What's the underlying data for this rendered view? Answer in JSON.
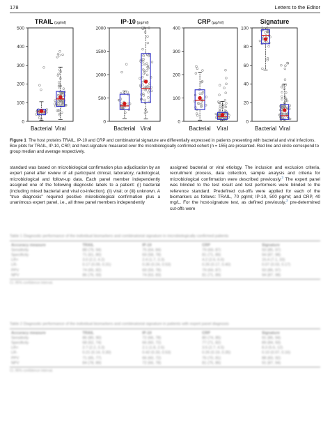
{
  "header": {
    "page_number": "178",
    "journal_section": "Letters to the Editor"
  },
  "figure": {
    "panels": [
      {
        "id": "trail",
        "title": "TRAIL",
        "unit": "(pg/ml)",
        "ticks": [
          "500",
          "400",
          "300",
          "200",
          "100",
          "0"
        ],
        "max": 500
      },
      {
        "id": "ip10",
        "title": "IP-10",
        "unit": "(pg/ml)",
        "ticks": [
          "2000",
          "1500",
          "1000",
          "500",
          "0"
        ],
        "max": 2000
      },
      {
        "id": "crp",
        "title": "CRP",
        "unit": "(µg/ml)",
        "ticks": [
          "400",
          "300",
          "200",
          "100",
          "0"
        ],
        "max": 400
      },
      {
        "id": "signature",
        "title": "Signature",
        "unit": "",
        "ticks": [
          "100",
          "80",
          "60",
          "40",
          "20",
          "0"
        ],
        "max": 100
      }
    ],
    "groups": [
      "Bacterial",
      "Viral"
    ],
    "colors": {
      "box": "#2d2dc8",
      "median": "#d01818",
      "points": "#888888",
      "mean": "#d01818"
    }
  },
  "chart_data": [
    {
      "type": "box",
      "title": "TRAIL",
      "ylabel": "(pg/ml)",
      "ylim": [
        0,
        500
      ],
      "categories": [
        "Bacterial",
        "Viral"
      ],
      "boxes": [
        {
          "q1": 35,
          "median": 50,
          "q3": 65,
          "whisker_low": 5,
          "whisker_high": 105,
          "mean": 55
        },
        {
          "q1": 80,
          "median": 120,
          "q3": 160,
          "whisker_low": 10,
          "whisker_high": 290,
          "mean": 130
        }
      ]
    },
    {
      "type": "box",
      "title": "IP-10",
      "ylabel": "(pg/ml)",
      "ylim": [
        0,
        2000
      ],
      "categories": [
        "Bacterial",
        "Viral"
      ],
      "boxes": [
        {
          "q1": 250,
          "median": 330,
          "q3": 580,
          "whisker_low": 60,
          "whisker_high": 650,
          "mean": 380
        },
        {
          "q1": 400,
          "median": 700,
          "q3": 1450,
          "whisker_low": 50,
          "whisker_high": 2000,
          "mean": 850
        }
      ]
    },
    {
      "type": "box",
      "title": "CRP",
      "ylabel": "(µg/ml)",
      "ylim": [
        0,
        400
      ],
      "categories": [
        "Bacterial",
        "Viral"
      ],
      "boxes": [
        {
          "q1": 50,
          "median": 90,
          "q3": 135,
          "whisker_low": 5,
          "whisker_high": 210,
          "mean": 100
        },
        {
          "q1": 8,
          "median": 20,
          "q3": 38,
          "whisker_low": 1,
          "whisker_high": 85,
          "mean": 28
        }
      ]
    },
    {
      "type": "box",
      "title": "Signature",
      "ylabel": "",
      "ylim": [
        0,
        100
      ],
      "categories": [
        "Bacterial",
        "Viral"
      ],
      "boxes": [
        {
          "q1": 83,
          "median": 92,
          "q3": 98,
          "whisker_low": 55,
          "whisker_high": 100,
          "mean": 88
        },
        {
          "q1": 2,
          "median": 6,
          "q3": 18,
          "whisker_low": 0,
          "whisker_high": 40,
          "mean": 12
        }
      ]
    }
  ],
  "caption": {
    "label": "Figure 1",
    "text": "The host proteins TRAIL, IP-10 and CRP and combinatorial signature are differentially expressed in patients presenting with bacterial and viral infections. Box plots for TRAIL, IP-10, CRP, and host-signature measured over the microbiologically confirmed cohort (n = 155) are presented. Red line and circle correspond to group median and average respectively."
  },
  "body": {
    "left": "standard was based on microbiological confirmation plus adjudication by an expert panel after review of all participant clinical, laboratory, radiological, microbiological and follow-up data. Each panel member independently assigned one of the following diagnostic labels to a patient: (i) bacterial (including mixed bacterial and viral co-infection); (ii) viral; or (iii) unknown. A \"true diagnosis\" required positive microbiological confirmation plus a unanimous expert panel, i.e., all three panel members independently",
    "right_a": "assigned bacterial or viral etiology. The inclusion and exclusion criteria, recruitment process, data collection, sample analysis and criteria for microbiological confirmation were described previously.",
    "ref1": "3",
    "right_b": " The expert panel was blinded to the test result and test performers were blinded to the reference standard. Predefined cut-offs were applied for each of the biomarkers as follows: TRAIL, 70 pg/ml; IP-10, 500 pg/ml; and CRP, 40 mg/L. For the host-signature test, as defined previously,",
    "ref2": "3",
    "right_c": " pre-determined cut-offs were"
  },
  "table1": {
    "caption": "Table 1 Diagnostic performance of the individual biomarkers and combinatorial signature in microbiologically confirmed patients",
    "columns": [
      "Accuracy measure",
      "TRAIL",
      "IP-10",
      "CRP",
      "Signature"
    ],
    "rows": [
      [
        "Sensitivity",
        "88 (79, 94)",
        "75 (64, 84)",
        "79 (69, 87)",
        "93 (85, 97)"
      ],
      [
        "Specificity",
        "71 (61, 80)",
        "69 (58, 78)",
        "81 (71, 89)",
        "94 (87, 98)"
      ],
      [
        "LR+",
        "3.0 (2.2, 4.2)",
        "2.4 (1.7, 3.3)",
        "4.2 (2.6, 6.6)",
        "15.4 (7.1, 33)"
      ],
      [
        "LR-",
        "0.17 (0.09, 0.31)",
        "0.36 (0.24, 0.53)",
        "0.26 (0.17, 0.40)",
        "0.07 (0.03, 0.17)"
      ],
      [
        "PPV",
        "74 (65, 82)",
        "69 (59, 78)",
        "79 (69, 87)",
        "93 (86, 97)"
      ],
      [
        "NPV",
        "86 (76, 93)",
        "74 (63, 83)",
        "81 (71, 89)",
        "94 (87, 98)"
      ]
    ],
    "footnote": "CI, 95% confidence interval."
  },
  "table2": {
    "caption": "Table 2 Diagnostic performance of the individual biomarkers and combinatorial signature in patients with expert panel diagnosis",
    "columns": [
      "Accuracy measure",
      "TRAIL",
      "IP-10",
      "CRP",
      "Signature"
    ],
    "rows": [
      [
        "Sensitivity",
        "86 (80, 90)",
        "72 (66, 78)",
        "80 (74, 85)",
        "91 (86, 94)"
      ],
      [
        "Specificity",
        "68 (62, 74)",
        "66 (60, 72)",
        "77 (71, 82)",
        "89 (84, 93)"
      ],
      [
        "LR+",
        "2.7 (2.2, 3.3)",
        "2.1 (1.8, 2.6)",
        "3.5 (2.7, 4.5)",
        "8.3 (5.6, 12)"
      ],
      [
        "LR-",
        "0.21 (0.14, 0.30)",
        "0.42 (0.33, 0.53)",
        "0.26 (0.19, 0.35)",
        "0.10 (0.07, 0.16)"
      ],
      [
        "PPV",
        "71 (65, 77)",
        "66 (60, 72)",
        "76 (70, 81)",
        "88 (83, 92)"
      ],
      [
        "NPV",
        "84 (78, 89)",
        "72 (66, 78)",
        "81 (75, 86)",
        "91 (87, 94)"
      ]
    ],
    "footnote": "CI, 95% confidence interval."
  }
}
